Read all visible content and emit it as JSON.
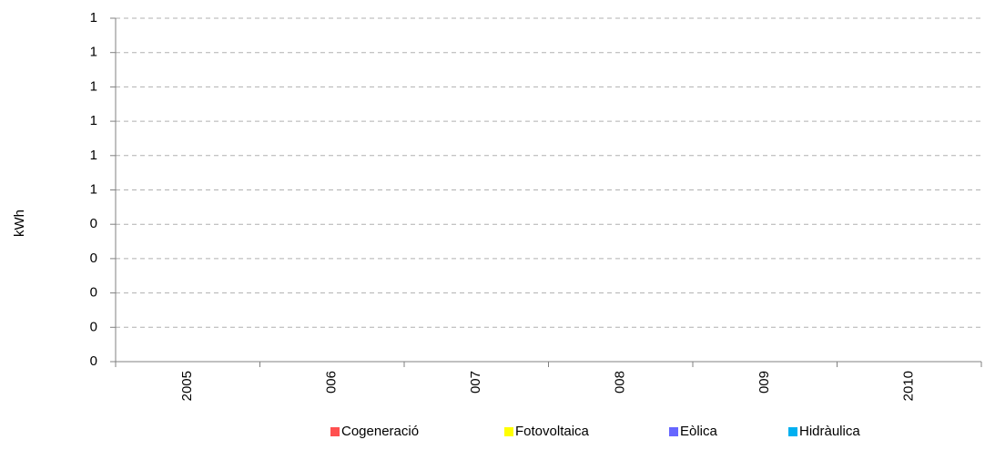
{
  "chart_data": {
    "type": "bar",
    "y_label": "kWh",
    "categories": [
      "2005",
      "006",
      "007",
      "008",
      "009",
      "2010"
    ],
    "series": [
      {
        "name": "Cogeneració",
        "color": "#ff5050",
        "values": [
          null,
          null,
          null,
          null,
          null,
          null
        ]
      },
      {
        "name": "Fotovoltaica",
        "color": "#ffff00",
        "values": [
          null,
          null,
          null,
          null,
          null,
          null
        ]
      },
      {
        "name": "Eòlica",
        "color": "#6666ff",
        "values": [
          null,
          null,
          null,
          null,
          null,
          null
        ]
      },
      {
        "name": "Hidràulica",
        "color": "#00b0f0",
        "values": [
          null,
          null,
          null,
          null,
          null,
          null
        ]
      }
    ],
    "ylim": [
      0,
      1
    ],
    "yticks": [
      {
        "value": 0,
        "label": "0"
      },
      {
        "value": 0.1,
        "label": "0"
      },
      {
        "value": 0.2,
        "label": "0"
      },
      {
        "value": 0.3,
        "label": "0"
      },
      {
        "value": 0.4,
        "label": "0"
      },
      {
        "value": 0.5,
        "label": "1"
      },
      {
        "value": 0.6,
        "label": "1"
      },
      {
        "value": 0.7,
        "label": "1"
      },
      {
        "value": 0.8,
        "label": "1"
      },
      {
        "value": 0.9,
        "label": "1"
      },
      {
        "value": 1,
        "label": "1"
      }
    ],
    "grid": true,
    "legend": "bottom"
  }
}
